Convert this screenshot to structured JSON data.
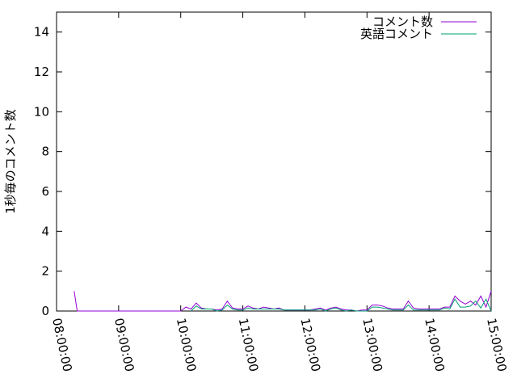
{
  "chart_data": {
    "type": "line",
    "title": "",
    "xlabel": "",
    "ylabel": "1秒毎のコメント数",
    "xlim": [
      "08:00:00",
      "15:00:00"
    ],
    "ylim": [
      0,
      15
    ],
    "x_ticks": [
      "08:00:00",
      "09:00:00",
      "10:00:00",
      "11:00:00",
      "12:00:00",
      "13:00:00",
      "14:00:00",
      "15:00:00"
    ],
    "y_ticks": [
      0,
      2,
      4,
      6,
      8,
      10,
      12,
      14
    ],
    "grid": false,
    "legend_position": "top-right",
    "series": [
      {
        "name": "コメント数",
        "color": "#9400d3",
        "points": [
          [
            "08:17:00",
            1
          ],
          [
            "08:20:00",
            0
          ],
          [
            "10:00:00",
            0
          ],
          [
            "10:05:00",
            0.2
          ],
          [
            "10:10:00",
            0.1
          ],
          [
            "10:15:00",
            0.4
          ],
          [
            "10:20:00",
            0.15
          ],
          [
            "10:25:00",
            0.1
          ],
          [
            "10:30:00",
            0.1
          ],
          [
            "10:35:00",
            0.05
          ],
          [
            "10:40:00",
            0.1
          ],
          [
            "10:45:00",
            0.5
          ],
          [
            "10:50:00",
            0.15
          ],
          [
            "10:55:00",
            0.1
          ],
          [
            "11:00:00",
            0.1
          ],
          [
            "11:05:00",
            0.25
          ],
          [
            "11:10:00",
            0.15
          ],
          [
            "11:15:00",
            0.1
          ],
          [
            "11:20:00",
            0.2
          ],
          [
            "11:25:00",
            0.15
          ],
          [
            "11:30:00",
            0.1
          ],
          [
            "11:35:00",
            0.15
          ],
          [
            "11:40:00",
            0.05
          ],
          [
            "11:45:00",
            0.05
          ],
          [
            "11:50:00",
            0.05
          ],
          [
            "11:55:00",
            0.05
          ],
          [
            "12:00:00",
            0.05
          ],
          [
            "12:05:00",
            0.05
          ],
          [
            "12:10:00",
            0.1
          ],
          [
            "12:15:00",
            0.15
          ],
          [
            "12:20:00",
            0.05
          ],
          [
            "12:25:00",
            0.15
          ],
          [
            "12:30:00",
            0.2
          ],
          [
            "12:35:00",
            0.1
          ],
          [
            "12:40:00",
            0.05
          ],
          [
            "12:45:00",
            0.05
          ],
          [
            "12:50:00",
            0
          ],
          [
            "12:55:00",
            0.05
          ],
          [
            "13:00:00",
            0.05
          ],
          [
            "13:05:00",
            0.3
          ],
          [
            "13:10:00",
            0.3
          ],
          [
            "13:15:00",
            0.25
          ],
          [
            "13:20:00",
            0.15
          ],
          [
            "13:25:00",
            0.1
          ],
          [
            "13:30:00",
            0.1
          ],
          [
            "13:35:00",
            0.1
          ],
          [
            "13:40:00",
            0.5
          ],
          [
            "13:45:00",
            0.15
          ],
          [
            "13:50:00",
            0.1
          ],
          [
            "13:55:00",
            0.1
          ],
          [
            "14:00:00",
            0.1
          ],
          [
            "14:05:00",
            0.1
          ],
          [
            "14:10:00",
            0.1
          ],
          [
            "14:15:00",
            0.2
          ],
          [
            "14:20:00",
            0.2
          ],
          [
            "14:25:00",
            0.75
          ],
          [
            "14:30:00",
            0.5
          ],
          [
            "14:35:00",
            0.35
          ],
          [
            "14:40:00",
            0.5
          ],
          [
            "14:45:00",
            0.3
          ],
          [
            "14:50:00",
            0.75
          ],
          [
            "14:55:00",
            0.2
          ],
          [
            "15:00:00",
            1.0
          ]
        ]
      },
      {
        "name": "英語コメント",
        "color": "#009e73",
        "points": [
          [
            "10:10:00",
            0
          ],
          [
            "10:15:00",
            0.25
          ],
          [
            "10:20:00",
            0.1
          ],
          [
            "10:25:00",
            0.1
          ],
          [
            "10:30:00",
            0.1
          ],
          [
            "10:35:00",
            0
          ],
          [
            "10:40:00",
            0.05
          ],
          [
            "10:45:00",
            0.3
          ],
          [
            "10:50:00",
            0.1
          ],
          [
            "10:55:00",
            0.05
          ],
          [
            "11:00:00",
            0.05
          ],
          [
            "11:05:00",
            0.15
          ],
          [
            "11:10:00",
            0.1
          ],
          [
            "11:15:00",
            0.1
          ],
          [
            "11:20:00",
            0.1
          ],
          [
            "11:25:00",
            0.1
          ],
          [
            "11:30:00",
            0.1
          ],
          [
            "11:35:00",
            0.1
          ],
          [
            "11:40:00",
            0.05
          ],
          [
            "11:45:00",
            0.05
          ],
          [
            "11:50:00",
            0.05
          ],
          [
            "11:55:00",
            0.05
          ],
          [
            "12:00:00",
            0.05
          ],
          [
            "12:05:00",
            0.05
          ],
          [
            "12:10:00",
            0.05
          ],
          [
            "12:15:00",
            0.1
          ],
          [
            "12:20:00",
            0
          ],
          [
            "12:25:00",
            0.1
          ],
          [
            "12:30:00",
            0.15
          ],
          [
            "12:35:00",
            0.05
          ],
          [
            "12:40:00",
            0
          ],
          [
            "12:45:00",
            0.05
          ],
          [
            "12:50:00",
            0
          ],
          [
            "12:55:00",
            0
          ],
          [
            "13:00:00",
            0
          ],
          [
            "13:05:00",
            0.2
          ],
          [
            "13:10:00",
            0.2
          ],
          [
            "13:15:00",
            0.15
          ],
          [
            "13:20:00",
            0.1
          ],
          [
            "13:25:00",
            0.05
          ],
          [
            "13:30:00",
            0.05
          ],
          [
            "13:35:00",
            0.05
          ],
          [
            "13:40:00",
            0.3
          ],
          [
            "13:45:00",
            0.05
          ],
          [
            "13:50:00",
            0.05
          ],
          [
            "13:55:00",
            0.05
          ],
          [
            "14:00:00",
            0.05
          ],
          [
            "14:05:00",
            0.05
          ],
          [
            "14:10:00",
            0.05
          ],
          [
            "14:15:00",
            0.15
          ],
          [
            "14:20:00",
            0.1
          ],
          [
            "14:25:00",
            0.6
          ],
          [
            "14:30:00",
            0.2
          ],
          [
            "14:35:00",
            0.2
          ],
          [
            "14:40:00",
            0.25
          ],
          [
            "14:45:00",
            0.5
          ],
          [
            "14:50:00",
            0.15
          ],
          [
            "14:55:00",
            0.6
          ],
          [
            "15:00:00",
            0
          ]
        ]
      }
    ]
  }
}
